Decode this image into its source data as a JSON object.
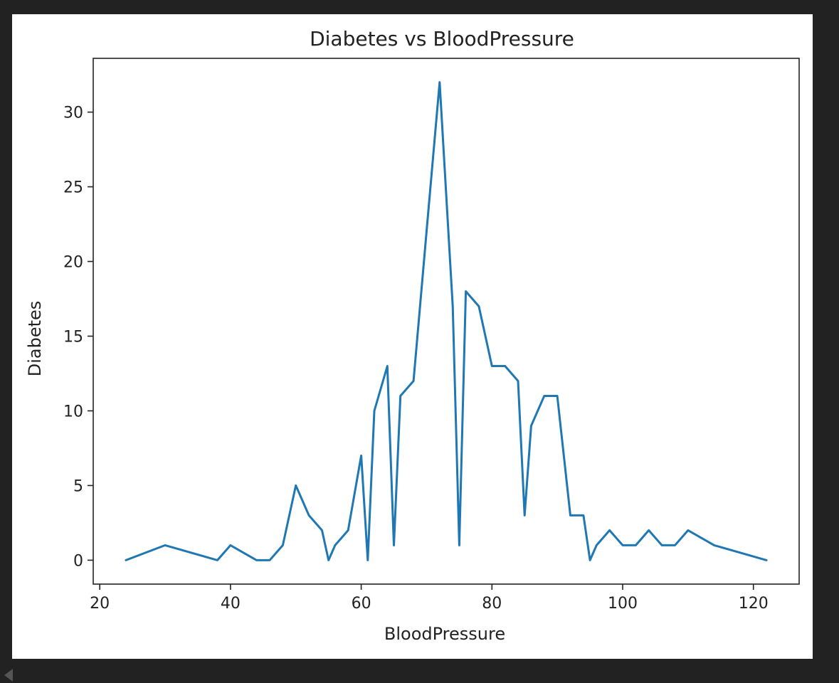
{
  "chart_data": {
    "type": "line",
    "title": "Diabetes vs BloodPressure",
    "xlabel": "BloodPressure",
    "ylabel": "Diabetes",
    "xlim": [
      19,
      127
    ],
    "ylim": [
      -1.6,
      33.6
    ],
    "xticks": [
      20,
      40,
      60,
      80,
      100,
      120
    ],
    "yticks": [
      0,
      5,
      10,
      15,
      20,
      25,
      30
    ],
    "grid": false,
    "series": [
      {
        "color": "#1f77b4",
        "x": [
          24,
          30,
          38,
          40,
          44,
          46,
          48,
          50,
          52,
          54,
          55,
          56,
          58,
          60,
          61,
          62,
          64,
          65,
          66,
          68,
          70,
          72,
          74,
          75,
          76,
          78,
          80,
          82,
          84,
          85,
          86,
          88,
          90,
          92,
          94,
          95,
          96,
          98,
          100,
          102,
          104,
          106,
          108,
          110,
          114,
          122
        ],
        "y": [
          0,
          1,
          0,
          1,
          0,
          0,
          1,
          5,
          3,
          2,
          0,
          1,
          2,
          7,
          0,
          10,
          13,
          1,
          11,
          12,
          22,
          32,
          17,
          1,
          18,
          17,
          13,
          13,
          12,
          3,
          9,
          11,
          11,
          3,
          3,
          0,
          1,
          2,
          1,
          1,
          2,
          1,
          1,
          2,
          1,
          0
        ]
      }
    ]
  }
}
